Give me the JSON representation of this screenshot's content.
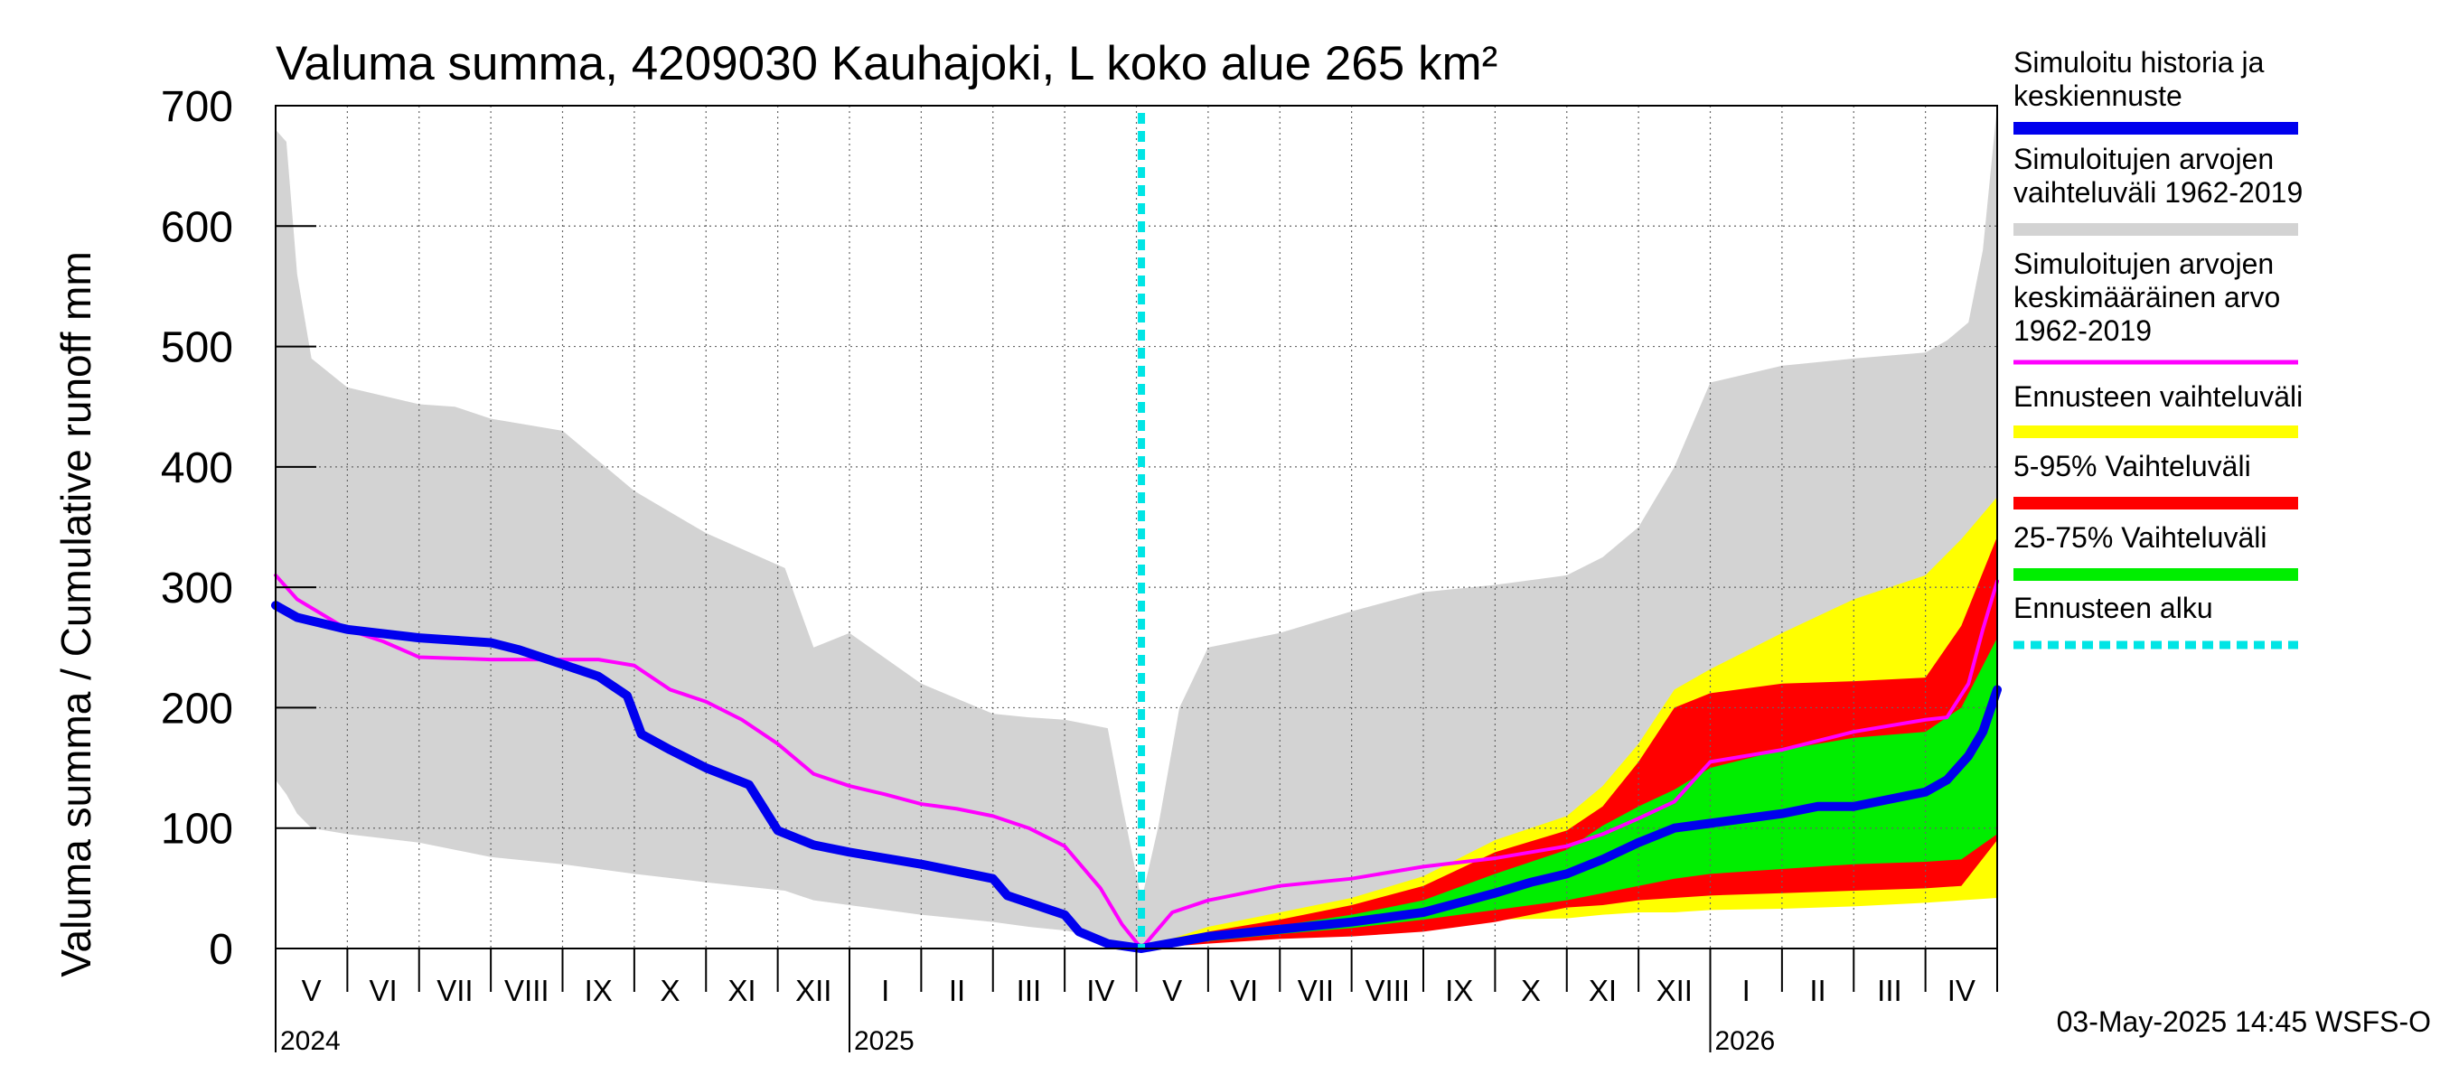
{
  "chart_data": {
    "type": "area",
    "title": "Valuma summa, 4209030 Kauhajoki, L koko alue 265 km²",
    "ylabel": "Valuma summa / Cumulative runoff    mm",
    "xlabel": "",
    "ylim": [
      0,
      700
    ],
    "yticks": [
      "0",
      "100",
      "200",
      "300",
      "400",
      "500",
      "600",
      "700"
    ],
    "time_unit": "months since 2024-05-01",
    "xlim": [
      0,
      24
    ],
    "forecast_start": 12.07,
    "month_labels": [
      "V",
      "VI",
      "VII",
      "VIII",
      "IX",
      "X",
      "XI",
      "XII",
      "I",
      "II",
      "III",
      "IV",
      "V",
      "VI",
      "VII",
      "VIII",
      "IX",
      "X",
      "XI",
      "XII",
      "I",
      "II",
      "III",
      "IV"
    ],
    "year_labels": [
      {
        "label": "2024",
        "at": 0
      },
      {
        "label": "2025",
        "at": 8
      },
      {
        "label": "2026",
        "at": 20
      }
    ],
    "series": [
      {
        "name": "Simuloitujen arvojen vaihteluväli 1962-2019",
        "color": "#d3d3d3",
        "kind": "band",
        "points": [
          [
            0,
            680,
            140
          ],
          [
            0.15,
            670,
            128
          ],
          [
            0.3,
            560,
            112
          ],
          [
            0.5,
            490,
            100
          ],
          [
            1,
            466,
            95
          ],
          [
            2,
            452,
            88
          ],
          [
            2.5,
            450,
            82
          ],
          [
            3,
            440,
            76
          ],
          [
            4,
            430,
            70
          ],
          [
            5,
            380,
            62
          ],
          [
            6,
            345,
            55
          ],
          [
            7.1,
            316,
            48
          ],
          [
            7.5,
            250,
            40
          ],
          [
            8,
            262,
            36
          ],
          [
            9,
            220,
            28
          ],
          [
            10,
            195,
            22
          ],
          [
            10.5,
            192,
            18
          ],
          [
            11,
            190,
            15
          ],
          [
            11.6,
            183,
            8
          ],
          [
            11.8,
            120,
            4
          ],
          [
            12.07,
            40,
            0
          ],
          [
            12.3,
            100,
            2
          ],
          [
            12.6,
            200,
            6
          ],
          [
            13,
            250,
            12
          ],
          [
            14,
            262,
            16
          ],
          [
            15,
            280,
            20
          ],
          [
            16,
            296,
            24
          ],
          [
            17,
            302,
            30
          ],
          [
            18,
            310,
            32
          ],
          [
            18.5,
            325,
            35
          ],
          [
            19,
            350,
            37
          ],
          [
            19.5,
            400,
            40
          ],
          [
            20,
            470,
            42
          ],
          [
            21,
            484,
            44
          ],
          [
            22,
            490,
            46
          ],
          [
            23,
            495,
            48
          ],
          [
            23.3,
            505,
            50
          ],
          [
            23.6,
            520,
            52
          ],
          [
            23.8,
            580,
            52
          ],
          [
            24,
            700,
            55
          ]
        ]
      },
      {
        "name": "Ennusteen vaihteluväli",
        "color": "#ffff00",
        "kind": "band",
        "points": [
          [
            12.07,
            0,
            0
          ],
          [
            13,
            18,
            6
          ],
          [
            14,
            30,
            10
          ],
          [
            15,
            42,
            14
          ],
          [
            16,
            60,
            20
          ],
          [
            17,
            90,
            24
          ],
          [
            18,
            110,
            25
          ],
          [
            18.5,
            135,
            28
          ],
          [
            19,
            170,
            30
          ],
          [
            19.5,
            215,
            30
          ],
          [
            20,
            232,
            32
          ],
          [
            21,
            262,
            33
          ],
          [
            22,
            290,
            35
          ],
          [
            23,
            310,
            38
          ],
          [
            23.5,
            340,
            40
          ],
          [
            24,
            375,
            42
          ]
        ]
      },
      {
        "name": "5-95% Vaihteluväli",
        "color": "#ff0000",
        "kind": "band",
        "points": [
          [
            12.07,
            0,
            0
          ],
          [
            13,
            14,
            4
          ],
          [
            14,
            24,
            8
          ],
          [
            15,
            36,
            10
          ],
          [
            16,
            52,
            14
          ],
          [
            17,
            80,
            22
          ],
          [
            18,
            98,
            34
          ],
          [
            18.5,
            118,
            36
          ],
          [
            19,
            155,
            40
          ],
          [
            19.5,
            200,
            42
          ],
          [
            20,
            212,
            44
          ],
          [
            21,
            220,
            46
          ],
          [
            22,
            222,
            48
          ],
          [
            23,
            225,
            50
          ],
          [
            23.5,
            268,
            52
          ],
          [
            24,
            342,
            90
          ]
        ]
      },
      {
        "name": "25-75% Vaihteluväli",
        "color": "#00ee00",
        "kind": "band",
        "points": [
          [
            12.07,
            0,
            0
          ],
          [
            13,
            10,
            6
          ],
          [
            14,
            19,
            12
          ],
          [
            15,
            28,
            17
          ],
          [
            16,
            40,
            24
          ],
          [
            17,
            62,
            32
          ],
          [
            18,
            82,
            40
          ],
          [
            18.5,
            102,
            46
          ],
          [
            19,
            118,
            52
          ],
          [
            19.5,
            132,
            58
          ],
          [
            20,
            150,
            62
          ],
          [
            21,
            165,
            66
          ],
          [
            22,
            175,
            70
          ],
          [
            23,
            180,
            72
          ],
          [
            23.5,
            200,
            74
          ],
          [
            24,
            258,
            95
          ]
        ]
      },
      {
        "name": "Simuloitu historia ja keskiennuste",
        "color": "#0000ee",
        "kind": "line",
        "points": [
          [
            0,
            285
          ],
          [
            0.3,
            275
          ],
          [
            1,
            265
          ],
          [
            2,
            258
          ],
          [
            3,
            254
          ],
          [
            3.4,
            248
          ],
          [
            3.8,
            240
          ],
          [
            4,
            236
          ],
          [
            4.5,
            226
          ],
          [
            4.9,
            210
          ],
          [
            5.1,
            178
          ],
          [
            5.5,
            165
          ],
          [
            6,
            150
          ],
          [
            6.6,
            136
          ],
          [
            7,
            98
          ],
          [
            7.5,
            86
          ],
          [
            8,
            80
          ],
          [
            9,
            70
          ],
          [
            10,
            58
          ],
          [
            10.2,
            44
          ],
          [
            11,
            28
          ],
          [
            11.2,
            14
          ],
          [
            11.6,
            4
          ],
          [
            12.07,
            0
          ],
          [
            13,
            10
          ],
          [
            14,
            16
          ],
          [
            15,
            22
          ],
          [
            16,
            30
          ],
          [
            16.5,
            38
          ],
          [
            17,
            46
          ],
          [
            17.5,
            55
          ],
          [
            18,
            62
          ],
          [
            18.5,
            74
          ],
          [
            19,
            88
          ],
          [
            19.5,
            100
          ],
          [
            20,
            104
          ],
          [
            21,
            112
          ],
          [
            21.5,
            118
          ],
          [
            22,
            118
          ],
          [
            22.5,
            124
          ],
          [
            23,
            130
          ],
          [
            23.3,
            140
          ],
          [
            23.6,
            160
          ],
          [
            23.8,
            180
          ],
          [
            24,
            215
          ]
        ]
      },
      {
        "name": "Simuloitujen arvojen keskimääräinen arvo 1962-2019",
        "color": "#ff00ff",
        "kind": "line",
        "points": [
          [
            0,
            310
          ],
          [
            0.3,
            290
          ],
          [
            1,
            265
          ],
          [
            1.5,
            255
          ],
          [
            2,
            242
          ],
          [
            3,
            240
          ],
          [
            4,
            240
          ],
          [
            4.5,
            240
          ],
          [
            5,
            235
          ],
          [
            5.5,
            215
          ],
          [
            6,
            205
          ],
          [
            6.5,
            190
          ],
          [
            7,
            170
          ],
          [
            7.5,
            145
          ],
          [
            8,
            135
          ],
          [
            8.5,
            128
          ],
          [
            9,
            120
          ],
          [
            9.5,
            116
          ],
          [
            10,
            110
          ],
          [
            10.5,
            100
          ],
          [
            11,
            85
          ],
          [
            11.5,
            50
          ],
          [
            11.8,
            20
          ],
          [
            12.07,
            0
          ],
          [
            12.5,
            30
          ],
          [
            13,
            40
          ],
          [
            14,
            52
          ],
          [
            15,
            58
          ],
          [
            16,
            68
          ],
          [
            17,
            75
          ],
          [
            18,
            85
          ],
          [
            18.5,
            95
          ],
          [
            19,
            108
          ],
          [
            19.5,
            122
          ],
          [
            20,
            155
          ],
          [
            21,
            165
          ],
          [
            22,
            180
          ],
          [
            23,
            190
          ],
          [
            23.3,
            192
          ],
          [
            23.6,
            220
          ],
          [
            23.8,
            265
          ],
          [
            24,
            305
          ]
        ]
      }
    ]
  },
  "legend": {
    "items": [
      {
        "lines": [
          "Simuloitu historia ja",
          "keskiennuste"
        ],
        "color": "#0000ee",
        "style": "solid"
      },
      {
        "lines": [
          "Simuloitujen arvojen",
          "vaihteluväli 1962-2019"
        ],
        "color": "#d3d3d3",
        "style": "solid"
      },
      {
        "lines": [
          "Simuloitujen arvojen",
          "keskimääräinen arvo",
          "   1962-2019"
        ],
        "color": "#ff00ff",
        "style": "thin"
      },
      {
        "lines": [
          "Ennusteen vaihteluväli"
        ],
        "color": "#ffff00",
        "style": "solid"
      },
      {
        "lines": [
          "5-95% Vaihteluväli"
        ],
        "color": "#ff0000",
        "style": "solid"
      },
      {
        "lines": [
          "25-75% Vaihteluväli"
        ],
        "color": "#00ee00",
        "style": "solid"
      },
      {
        "lines": [
          "Ennusteen alku"
        ],
        "color": "#00e5e5",
        "style": "dashed"
      }
    ]
  },
  "footer": {
    "timestamp": "03-May-2025 14:45 WSFS-O"
  }
}
